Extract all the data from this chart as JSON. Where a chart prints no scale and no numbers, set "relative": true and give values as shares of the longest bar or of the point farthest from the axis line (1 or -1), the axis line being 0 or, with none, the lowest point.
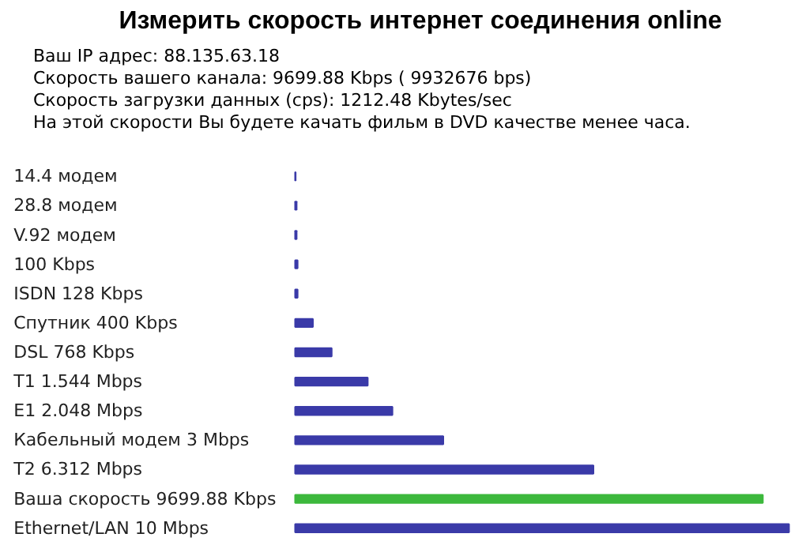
{
  "chart_data": {
    "type": "bar",
    "orientation": "horizontal",
    "relative": true,
    "title": "Измерить скорость интернет соединения online",
    "annotations": [
      "Ваш IP адрес: 88.135.63.18",
      "Скорость вашего канала: 9699.88 Kbps ( 9932676 bps)",
      "Скорость загрузки данных (cps): 1212.48 Kbytes/sec",
      "На этой скорости Вы будете качать фильм в DVD качестве менее часа."
    ],
    "categories": [
      "14.4 модем",
      "28.8 модем",
      "V.92 модем",
      "100 Kbps",
      "ISDN 128 Kbps",
      "Спутник 400 Kbps",
      "DSL 768 Kbps",
      "T1 1.544 Mbps",
      "E1 2.048 Mbps",
      "Кабельный модем 3 Mbps",
      "T2 6.312 Mbps",
      "Ваша скорость 9699.88 Kbps",
      "Ethernet/LAN 10 Mbps"
    ],
    "values": [
      0.001,
      0.003,
      0.003,
      0.005,
      0.005,
      0.036,
      0.074,
      0.147,
      0.197,
      0.3,
      0.604,
      0.947,
      1
    ],
    "colors": [
      "#3a3aa8",
      "#3a3aa8",
      "#3a3aa8",
      "#3a3aa8",
      "#3a3aa8",
      "#3a3aa8",
      "#3a3aa8",
      "#3a3aa8",
      "#3a3aa8",
      "#3a3aa8",
      "#3a3aa8",
      "#3cb83c",
      "#3a3aa8"
    ]
  }
}
